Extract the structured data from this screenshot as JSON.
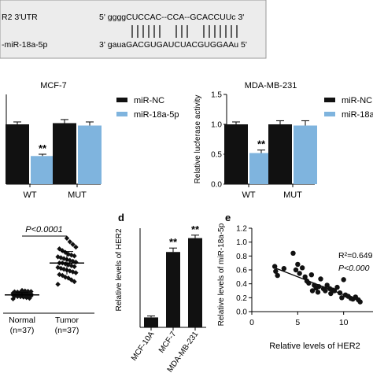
{
  "sequence_box": {
    "line1_label": "R2 3'UTR",
    "line1_seq": "5'  ggggCUCCAC--CCA--GCACCUUc  3'",
    "line2_label": "-miR-18a-5p",
    "line2_seq": "3'  gauaGACGUGAUCUACGUGGAAu  5'"
  },
  "colors": {
    "black_bar": "#111111",
    "blue_bar": "#7fb4de",
    "box_bg": "#ececec"
  },
  "chart_data": [
    {
      "panel": "b",
      "type": "bar",
      "title": "MCF-7",
      "categories": [
        "WT",
        "MUT"
      ],
      "series": [
        {
          "name": "miR-NC",
          "values": [
            1.0,
            1.02
          ],
          "errors": [
            0.04,
            0.06
          ]
        },
        {
          "name": "miR-18a-5p",
          "values": [
            0.47,
            0.98
          ],
          "errors": [
            0.03,
            0.06
          ]
        }
      ],
      "ylim": [
        0,
        1.5
      ],
      "annotations": [
        {
          "text": "**",
          "category": "WT",
          "series": "miR-18a-5p"
        }
      ]
    },
    {
      "panel": "c",
      "type": "bar",
      "title": "MDA-MB-231",
      "ylabel": "Relative lucferase activity",
      "yticks": [
        "0.0",
        "0.5",
        "1.0",
        "1.5"
      ],
      "categories": [
        "WT",
        "MUT"
      ],
      "series": [
        {
          "name": "miR-NC",
          "values": [
            1.0,
            1.0
          ],
          "errors": [
            0.04,
            0.06
          ]
        },
        {
          "name": "miR-18a-5p",
          "values": [
            0.52,
            0.98
          ],
          "errors": [
            0.05,
            0.08
          ]
        }
      ],
      "ylim": [
        0,
        1.5
      ],
      "legend": [
        "miR-NC",
        "miR-18a"
      ],
      "annotations": [
        {
          "text": "**",
          "category": "WT",
          "series": "miR-18a-5p"
        }
      ]
    },
    {
      "panel": "left-scatter",
      "type": "scatter",
      "categories": [
        "Normal\n(n=37)",
        "Tumor\n(n=37)"
      ],
      "category_labels": [
        [
          "Normal",
          "(n=37)"
        ],
        [
          "Tumor",
          "(n=37)"
        ]
      ],
      "significance": "P<0.0001",
      "groups": [
        {
          "name": "Normal",
          "mean": 1.0,
          "sd": 0.25,
          "values": [
            0.55,
            0.62,
            0.7,
            0.75,
            0.8,
            0.82,
            0.85,
            0.88,
            0.9,
            0.92,
            0.95,
            0.96,
            0.98,
            1.0,
            1.0,
            1.02,
            1.04,
            1.05,
            1.07,
            1.08,
            1.1,
            1.1,
            1.12,
            1.14,
            1.15,
            1.18,
            1.2,
            1.22,
            1.25,
            1.28,
            1.3,
            1.32,
            1.35,
            1.38,
            1.4,
            1.45,
            1.5
          ]
        },
        {
          "name": "Tumor",
          "mean": 4.6,
          "sd": 1.3,
          "values": [
            2.2,
            2.5,
            2.7,
            2.9,
            3.0,
            3.2,
            3.3,
            3.5,
            3.6,
            3.7,
            3.8,
            3.9,
            4.0,
            4.1,
            4.2,
            4.3,
            4.4,
            4.5,
            4.6,
            4.6,
            4.7,
            4.8,
            4.9,
            5.0,
            5.1,
            5.2,
            5.3,
            5.4,
            5.5,
            5.6,
            5.8,
            6.0,
            6.2,
            6.4,
            6.7,
            7.0,
            7.4
          ]
        }
      ],
      "ylim": [
        0,
        8
      ]
    },
    {
      "panel": "d",
      "type": "bar",
      "ylabel": "Relative levels of HER2",
      "categories": [
        "MCF-10A",
        "MCF-7",
        "MDA-MB-231"
      ],
      "values": [
        1.0,
        7.6,
        9.0
      ],
      "errors": [
        0.15,
        0.4,
        0.3
      ],
      "annotations": [
        "",
        "**",
        "**"
      ],
      "ylim": [
        0,
        10
      ]
    },
    {
      "panel": "e",
      "type": "scatter",
      "xlabel": "Relative levels of HER2",
      "ylabel": "Relative levels of miR-18a-5p",
      "xticks": [
        "0",
        "5",
        "10"
      ],
      "yticks": [
        "0.0",
        "0.2",
        "0.4",
        "0.6",
        "0.8",
        "1.0",
        "1.2"
      ],
      "xlim": [
        0,
        12
      ],
      "ylim": [
        0,
        1.2
      ],
      "stats": [
        "R²=0.649",
        "P<0.000"
      ],
      "points": [
        [
          2.5,
          0.65
        ],
        [
          2.6,
          0.58
        ],
        [
          2.8,
          0.52
        ],
        [
          3.5,
          0.62
        ],
        [
          4.5,
          0.84
        ],
        [
          5.0,
          0.68
        ],
        [
          5.2,
          0.55
        ],
        [
          5.5,
          0.63
        ],
        [
          5.8,
          0.5
        ],
        [
          6.0,
          0.44
        ],
        [
          6.2,
          0.41
        ],
        [
          6.5,
          0.53
        ],
        [
          6.8,
          0.38
        ],
        [
          7.0,
          0.34
        ],
        [
          7.2,
          0.28
        ],
        [
          7.3,
          0.36
        ],
        [
          7.5,
          0.47
        ],
        [
          7.8,
          0.33
        ],
        [
          8.0,
          0.3
        ],
        [
          8.2,
          0.38
        ],
        [
          8.5,
          0.33
        ],
        [
          8.8,
          0.31
        ],
        [
          9.0,
          0.3
        ],
        [
          9.3,
          0.35
        ],
        [
          9.6,
          0.27
        ],
        [
          10.0,
          0.46
        ],
        [
          10.2,
          0.24
        ],
        [
          10.5,
          0.22
        ],
        [
          10.8,
          0.19
        ],
        [
          11.0,
          0.18
        ],
        [
          11.3,
          0.21
        ],
        [
          11.6,
          0.17
        ],
        [
          11.8,
          0.14
        ],
        [
          9.8,
          0.2
        ],
        [
          8.6,
          0.26
        ],
        [
          6.6,
          0.3
        ],
        [
          4.8,
          0.6
        ]
      ],
      "fit": [
        [
          2.5,
          0.63
        ],
        [
          12,
          0.14
        ]
      ]
    }
  ],
  "panel_labels": {
    "d": "d",
    "e": "e"
  }
}
